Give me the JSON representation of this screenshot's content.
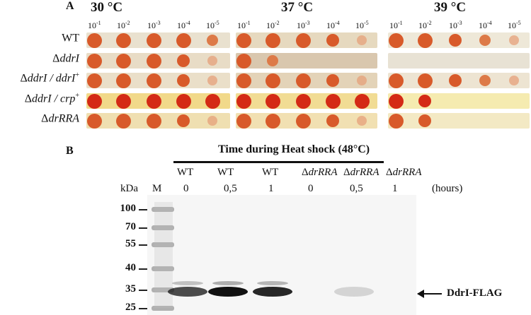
{
  "panel_a": {
    "letter": "A",
    "temperatures": [
      "30 °C",
      "37 °C",
      "39 °C"
    ],
    "dilutions": [
      "10",
      "-1",
      "10",
      "-2",
      "10",
      "-3",
      "10",
      "-4",
      "10",
      "-5"
    ],
    "strains": [
      {
        "pre": "WT",
        "it": "",
        "post": "",
        "sup": ""
      },
      {
        "pre": "Δ",
        "it": "ddrI",
        "post": "",
        "sup": ""
      },
      {
        "pre": "Δ",
        "it": "ddrI / ddrI",
        "post": "",
        "sup": "+"
      },
      {
        "pre": "Δ",
        "it": "ddrI / crp",
        "post": "",
        "sup": "+"
      },
      {
        "pre": "Δ",
        "it": "drRRA",
        "post": "",
        "sup": ""
      }
    ],
    "growth": [
      [
        [
          5,
          5,
          5,
          5,
          3
        ],
        [
          5,
          5,
          5,
          4,
          2
        ],
        [
          5,
          5,
          4,
          3,
          2
        ]
      ],
      [
        [
          5,
          5,
          5,
          4,
          2
        ],
        [
          5,
          3,
          0,
          0,
          0
        ],
        [
          0,
          0,
          0,
          0,
          0
        ]
      ],
      [
        [
          5,
          5,
          5,
          4,
          2
        ],
        [
          5,
          5,
          5,
          4,
          2
        ],
        [
          5,
          5,
          4,
          3,
          2
        ]
      ],
      [
        [
          5,
          5,
          5,
          5,
          5
        ],
        [
          5,
          5,
          5,
          5,
          5
        ],
        [
          5,
          4,
          0,
          0,
          0
        ]
      ],
      [
        [
          5,
          5,
          5,
          4,
          2
        ],
        [
          5,
          5,
          5,
          4,
          2
        ],
        [
          5,
          4,
          0,
          0,
          0
        ]
      ]
    ]
  },
  "panel_b": {
    "letter": "B",
    "header": "Time during Heat shock (48°C)",
    "kda_label": "kDa",
    "marker_label": "M",
    "lanes": [
      {
        "strain_pre": "",
        "strain_it": "",
        "strain_plain": "WT",
        "time": "0"
      },
      {
        "strain_pre": "",
        "strain_it": "",
        "strain_plain": "WT",
        "time": "0,5"
      },
      {
        "strain_pre": "",
        "strain_it": "",
        "strain_plain": "WT",
        "time": "1"
      },
      {
        "strain_pre": "Δ",
        "strain_it": "drRRA",
        "strain_plain": "",
        "time": "0"
      },
      {
        "strain_pre": "Δ",
        "strain_it": "drRRA",
        "strain_plain": "",
        "time": "0,5"
      },
      {
        "strain_pre": "Δ",
        "strain_it": "drRRA",
        "strain_plain": "",
        "time": "1"
      }
    ],
    "time_unit": "(hours)",
    "mw_markers": [
      "100",
      "70",
      "55",
      "40",
      "35",
      "25"
    ],
    "band_label": "DdrI-FLAG",
    "band_intensity": [
      0.75,
      1.0,
      0.9,
      0.0,
      0.15,
      0.0
    ]
  }
}
